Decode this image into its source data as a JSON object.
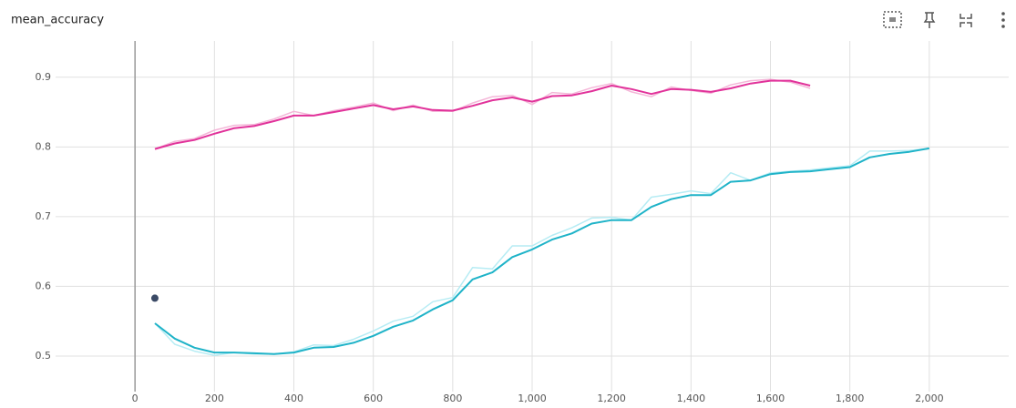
{
  "chart_data": {
    "type": "line",
    "title": "mean_accuracy",
    "xlim": [
      -200,
      2200
    ],
    "ylim": [
      0.449,
      0.952
    ],
    "xticks": [
      0,
      200,
      400,
      600,
      800,
      {
        "value": 1000,
        "label": "1,000"
      },
      {
        "value": 1200,
        "label": "1,200"
      },
      {
        "value": 1400,
        "label": "1,400"
      },
      {
        "value": 1600,
        "label": "1,600"
      },
      {
        "value": 1800,
        "label": "1,800"
      },
      {
        "value": 2000,
        "label": "2,000"
      }
    ],
    "yticks": [
      0.5,
      0.6,
      0.7,
      0.8,
      0.9
    ],
    "grid": true,
    "series": [
      {
        "color": "#f4b6d8",
        "width": 1.5,
        "x": [
          50,
          100,
          150,
          200,
          250,
          300,
          350,
          400,
          450,
          500,
          550,
          600,
          650,
          700,
          750,
          800,
          850,
          900,
          950,
          1000,
          1050,
          1100,
          1150,
          1200,
          1250,
          1300,
          1350,
          1400,
          1450,
          1500,
          1550,
          1600,
          1650,
          1700
        ],
        "values": [
          0.797,
          0.808,
          0.812,
          0.824,
          0.831,
          0.832,
          0.84,
          0.851,
          0.845,
          0.852,
          0.857,
          0.863,
          0.852,
          0.86,
          0.851,
          0.851,
          0.863,
          0.872,
          0.874,
          0.861,
          0.878,
          0.876,
          0.885,
          0.891,
          0.879,
          0.872,
          0.886,
          0.881,
          0.877,
          0.889,
          0.895,
          0.897,
          0.893,
          0.884
        ]
      },
      {
        "color": "#b6ecf4",
        "width": 1.5,
        "x": [
          50,
          100,
          150,
          200,
          250,
          300,
          350,
          400,
          450,
          500,
          550,
          600,
          650,
          700,
          750,
          800,
          850,
          900,
          950,
          1000,
          1050,
          1100,
          1150,
          1200,
          1250,
          1300,
          1350,
          1400,
          1450,
          1500,
          1550,
          1600,
          1650,
          1700,
          1750,
          1800,
          1850,
          1900,
          1950,
          2000
        ],
        "values": [
          0.547,
          0.517,
          0.507,
          0.501,
          0.505,
          0.503,
          0.503,
          0.506,
          0.516,
          0.515,
          0.524,
          0.536,
          0.55,
          0.557,
          0.578,
          0.584,
          0.627,
          0.625,
          0.658,
          0.658,
          0.673,
          0.684,
          0.698,
          0.699,
          0.695,
          0.728,
          0.732,
          0.737,
          0.733,
          0.763,
          0.752,
          0.763,
          0.765,
          0.767,
          0.77,
          0.773,
          0.794,
          0.794,
          0.795,
          0.798
        ]
      },
      {
        "color": "#e1329a",
        "width": 2,
        "x": [
          50,
          100,
          150,
          200,
          250,
          300,
          350,
          400,
          450,
          500,
          550,
          600,
          650,
          700,
          750,
          800,
          850,
          900,
          950,
          1000,
          1050,
          1100,
          1150,
          1200,
          1250,
          1300,
          1350,
          1400,
          1450,
          1500,
          1550,
          1600,
          1650,
          1700
        ],
        "values": [
          0.797,
          0.805,
          0.81,
          0.819,
          0.827,
          0.83,
          0.837,
          0.845,
          0.845,
          0.85,
          0.855,
          0.86,
          0.854,
          0.858,
          0.853,
          0.852,
          0.859,
          0.867,
          0.871,
          0.865,
          0.873,
          0.874,
          0.88,
          0.888,
          0.883,
          0.876,
          0.883,
          0.882,
          0.879,
          0.884,
          0.891,
          0.895,
          0.895,
          0.888
        ]
      },
      {
        "color": "#1fb3c8",
        "width": 2,
        "x": [
          50,
          100,
          150,
          200,
          250,
          300,
          350,
          400,
          450,
          500,
          550,
          600,
          650,
          700,
          750,
          800,
          850,
          900,
          950,
          1000,
          1050,
          1100,
          1150,
          1200,
          1250,
          1300,
          1350,
          1400,
          1450,
          1500,
          1550,
          1600,
          1650,
          1700,
          1750,
          1800,
          1850,
          1900,
          1950,
          2000
        ],
        "values": [
          0.547,
          0.525,
          0.512,
          0.505,
          0.505,
          0.504,
          0.503,
          0.505,
          0.512,
          0.513,
          0.519,
          0.529,
          0.542,
          0.551,
          0.567,
          0.58,
          0.61,
          0.62,
          0.642,
          0.653,
          0.667,
          0.676,
          0.69,
          0.695,
          0.695,
          0.714,
          0.725,
          0.731,
          0.731,
          0.75,
          0.752,
          0.761,
          0.764,
          0.765,
          0.768,
          0.771,
          0.785,
          0.79,
          0.793,
          0.798
        ]
      },
      {
        "color": "#3b4a66",
        "width": 0,
        "marker": true,
        "x": [
          50
        ],
        "values": [
          0.583
        ]
      }
    ]
  }
}
